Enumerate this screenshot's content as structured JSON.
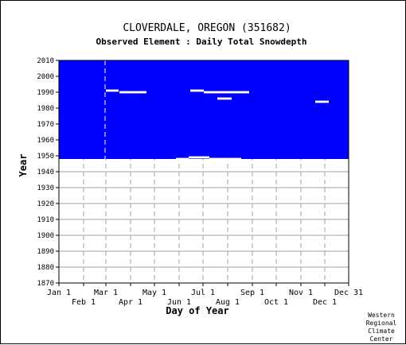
{
  "chart_data": {
    "type": "heatmap",
    "title": "CLOVERDALE, OREGON   (351682)",
    "subtitle": "Observed Element : Daily Total Snowdepth",
    "xlabel": "Day of Year",
    "ylabel": "Year",
    "xlim": [
      1,
      365
    ],
    "ylim": [
      1870,
      2010
    ],
    "yticks": [
      1870,
      1880,
      1890,
      1900,
      1910,
      1920,
      1930,
      1940,
      1950,
      1960,
      1970,
      1980,
      1990,
      2000,
      2010
    ],
    "xticks_top": [
      {
        "label": "Jan 1",
        "day": 1
      },
      {
        "label": "Mar 1",
        "day": 60
      },
      {
        "label": "May 1",
        "day": 121
      },
      {
        "label": "Jul 1",
        "day": 182
      },
      {
        "label": "Sep 1",
        "day": 244
      },
      {
        "label": "Nov 1",
        "day": 305
      },
      {
        "label": "Dec 31",
        "day": 365
      }
    ],
    "xticks_bottom": [
      {
        "label": "Feb 1",
        "day": 32
      },
      {
        "label": "Apr 1",
        "day": 91
      },
      {
        "label": "Jun 1",
        "day": 152
      },
      {
        "label": "Aug 1",
        "day": 213
      },
      {
        "label": "Oct 1",
        "day": 274
      },
      {
        "label": "Dec 1",
        "day": 335
      }
    ],
    "grid": true,
    "legend": "none",
    "data_color": "#0000ff",
    "missing_color": "#ffffff",
    "data_coverage": {
      "year_start": 1948,
      "year_end": 2010,
      "day_start": 1,
      "day_end": 365
    },
    "missing_segments": [
      {
        "year": 1991,
        "day_start": 60,
        "day_end": 76
      },
      {
        "year": 1990,
        "day_start": 77,
        "day_end": 111
      },
      {
        "year": 1991,
        "day_start": 166,
        "day_end": 183
      },
      {
        "year": 1990,
        "day_start": 183,
        "day_end": 215
      },
      {
        "year": 1986,
        "day_start": 200,
        "day_end": 218
      },
      {
        "year": 1990,
        "day_start": 215,
        "day_end": 240
      },
      {
        "year": 1984,
        "day_start": 323,
        "day_end": 340
      },
      {
        "year": 1948,
        "day_start": 148,
        "day_end": 164
      },
      {
        "year": 1949,
        "day_start": 164,
        "day_end": 180
      },
      {
        "year": 1949,
        "day_start": 180,
        "day_end": 190
      },
      {
        "year": 1948,
        "day_start": 190,
        "day_end": 230
      }
    ],
    "missing_days_line": [
      {
        "day": 59,
        "year_start": 1948,
        "year_end": 2010
      }
    ]
  },
  "credit": {
    "line1": "Western",
    "line2": "Regional",
    "line3": "Climate",
    "line4": "Center"
  }
}
